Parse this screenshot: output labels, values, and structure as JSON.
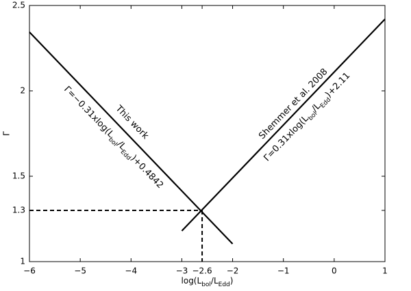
{
  "chart_data": {
    "type": "line",
    "x_label": [
      "log(L",
      "bol",
      "/L",
      "Edd",
      ")"
    ],
    "y_label": "Γ",
    "xlim": [
      -6,
      1
    ],
    "ylim": [
      1,
      2.5
    ],
    "xticks": [
      {
        "value": -6,
        "label": "−6"
      },
      {
        "value": -5,
        "label": "−5"
      },
      {
        "value": -4,
        "label": "−4"
      },
      {
        "value": -3,
        "label": "−3"
      },
      {
        "value": -2.6,
        "label": "−2.6"
      },
      {
        "value": -2,
        "label": "−2"
      },
      {
        "value": -1,
        "label": "−1"
      },
      0,
      1
    ],
    "yticks": [
      1,
      1.3,
      1.5,
      2,
      2.5
    ],
    "series": [
      {
        "color": "#000000",
        "x": [
          -6,
          -2
        ],
        "values": [
          2.344,
          1.104
        ]
      },
      {
        "color": "#000000",
        "x": [
          -3,
          1
        ],
        "values": [
          1.18,
          2.42
        ]
      }
    ],
    "reference_point": {
      "x": -2.6,
      "y": 1.3
    },
    "annotations": [
      {
        "parts": [
          "This work"
        ]
      },
      {
        "parts": [
          "Γ=−0.31xlog(L",
          "bol",
          "/L",
          "Edd",
          ")+0.4842"
        ]
      },
      {
        "parts": [
          "Shemmer et al. 2008"
        ]
      },
      {
        "parts": [
          "Γ=0.31xlog(L",
          "bol",
          "/L",
          "Edd",
          ")+2.11"
        ]
      }
    ]
  }
}
